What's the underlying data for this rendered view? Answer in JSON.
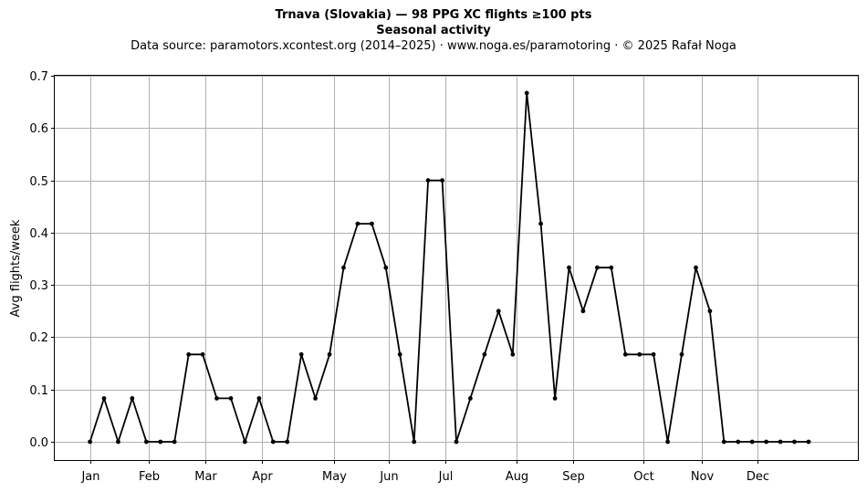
{
  "chart_data": {
    "type": "line",
    "title": "Trnava (Slovakia)  —  98 PPG XC flights ≥100 pts",
    "subtitle": "Seasonal activity",
    "source_line": "Data source: paramotors.xcontest.org (2014–2025)  ·  www.noga.es/paramotoring  ·  © 2025 Rafał Noga",
    "xlabel": "",
    "ylabel": "Avg flights/week",
    "x_range": [
      -2.5,
      54.5
    ],
    "ylim": [
      -0.035,
      0.7
    ],
    "y_ticks": [
      0.0,
      0.1,
      0.2,
      0.3,
      0.4,
      0.5,
      0.6,
      0.7
    ],
    "y_tick_labels": [
      "0.0",
      "0.1",
      "0.2",
      "0.3",
      "0.4",
      "0.5",
      "0.6",
      "0.7"
    ],
    "x_ticks": [
      {
        "label": "Jan",
        "week": 0
      },
      {
        "label": "Feb",
        "week": 4.2
      },
      {
        "label": "Mar",
        "week": 8.2
      },
      {
        "label": "Apr",
        "week": 12.2
      },
      {
        "label": "May",
        "week": 17.3
      },
      {
        "label": "Jun",
        "week": 21.2
      },
      {
        "label": "Jul",
        "week": 25.2
      },
      {
        "label": "Aug",
        "week": 30.3
      },
      {
        "label": "Sep",
        "week": 34.3
      },
      {
        "label": "Oct",
        "week": 39.3
      },
      {
        "label": "Nov",
        "week": 43.4
      },
      {
        "label": "Dec",
        "week": 47.4
      }
    ],
    "grid": true,
    "color": "#000000",
    "grid_color": "#b0b0b0",
    "series": [
      {
        "x": [
          0,
          1,
          2,
          3,
          4,
          5,
          6,
          7,
          8,
          9,
          10,
          11,
          12,
          13,
          14,
          15,
          16,
          17,
          18,
          19,
          20,
          21,
          22,
          23,
          24,
          25,
          26,
          27,
          28,
          29,
          30,
          31,
          32,
          33,
          34,
          35,
          36,
          37,
          38,
          39,
          40,
          41,
          42,
          43,
          44,
          45,
          46,
          47,
          48,
          49,
          50,
          51
        ],
        "values": [
          0,
          0.083,
          0,
          0.083,
          0,
          0,
          0,
          0.167,
          0.167,
          0.083,
          0.083,
          0,
          0.083,
          0,
          0,
          0.167,
          0.083,
          0.167,
          0.333,
          0.417,
          0.417,
          0.333,
          0.167,
          0,
          0.5,
          0.5,
          0,
          0.083,
          0.167,
          0.25,
          0.167,
          0.667,
          0.417,
          0.083,
          0.333,
          0.25,
          0.333,
          0.333,
          0.167,
          0.167,
          0.167,
          0,
          0.167,
          0.333,
          0.25,
          0,
          0,
          0,
          0,
          0,
          0,
          0
        ]
      }
    ]
  }
}
